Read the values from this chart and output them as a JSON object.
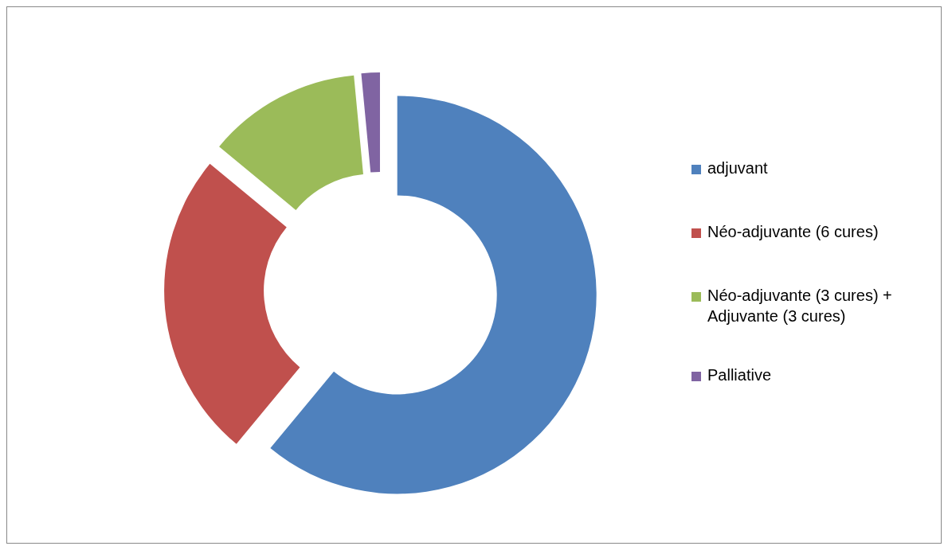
{
  "chart_data": {
    "type": "donut",
    "categories": [
      "adjuvant",
      "Néo-adjuvante (6 cures)",
      "Néo-adjuvante (3 cures) + Adjuvante (3 cures)",
      "Palliative"
    ],
    "values": [
      61,
      25,
      12.5,
      1.5
    ],
    "colors": [
      "#4f81bd",
      "#c0504d",
      "#9bbb59",
      "#8064a2"
    ],
    "legend": "right"
  }
}
